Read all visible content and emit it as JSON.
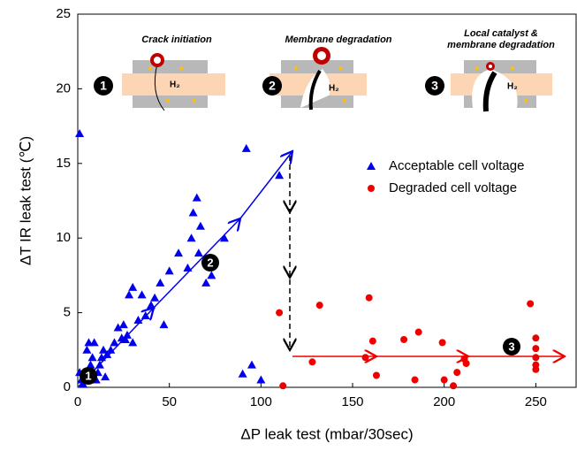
{
  "chart_data": {
    "type": "scatter",
    "xlabel": "ΔP leak test (mbar/30sec)",
    "ylabel": "ΔT IR leak test (℃)",
    "xlim": [
      0,
      272
    ],
    "ylim": [
      0,
      25
    ],
    "xticks": [
      0,
      50,
      100,
      150,
      200,
      250
    ],
    "yticks": [
      0,
      5,
      10,
      15,
      20,
      25
    ],
    "legend": "upper right",
    "series": [
      {
        "name": "Acceptable cell voltage",
        "color": "#0000ee",
        "marker": "triangle",
        "x": [
          1,
          1,
          2,
          3,
          4,
          5,
          6,
          7,
          8,
          9,
          10,
          11,
          12,
          13,
          14,
          15,
          16,
          18,
          20,
          22,
          24,
          25,
          26,
          27,
          28,
          30,
          30,
          33,
          35,
          37,
          40,
          42,
          45,
          47,
          50,
          55,
          60,
          62,
          63,
          65,
          66,
          67,
          70,
          72,
          73,
          80,
          90,
          92,
          95,
          100,
          110
        ],
        "values": [
          17,
          1,
          0.5,
          0.2,
          1,
          2.5,
          3,
          1.5,
          2,
          3,
          0.5,
          1,
          1.5,
          2,
          2.5,
          0.7,
          2.2,
          2.5,
          3,
          4,
          3.3,
          4.2,
          3.2,
          3.5,
          6.2,
          6.7,
          3,
          4.5,
          6.2,
          4.8,
          5.5,
          6,
          7,
          4.2,
          7.8,
          9,
          8,
          10,
          11.7,
          12.7,
          9,
          10.8,
          7,
          8.3,
          7.5,
          10,
          0.9,
          16,
          1.5,
          0.5,
          14.2
        ]
      },
      {
        "name": "Degraded cell voltage",
        "color": "#ee0000",
        "marker": "circle",
        "x": [
          110,
          112,
          128,
          132,
          157,
          159,
          161,
          163,
          178,
          184,
          186,
          199,
          200,
          205,
          207,
          211,
          212,
          247,
          250,
          250,
          250,
          250,
          250
        ],
        "values": [
          5,
          0.1,
          1.7,
          5.5,
          2,
          6,
          3.1,
          0.8,
          3.2,
          0.5,
          3.7,
          3,
          0.5,
          0.1,
          1,
          1.9,
          1.6,
          5.6,
          3.3,
          2.6,
          2,
          1.5,
          1.2
        ]
      }
    ],
    "annotations": {
      "stage_numbers": [
        "1",
        "2",
        "3"
      ],
      "inset_titles": [
        "Crack initiation",
        "Membrane degradation",
        "Local catalyst &",
        "membrane degradation"
      ],
      "gas": "H₂"
    }
  }
}
